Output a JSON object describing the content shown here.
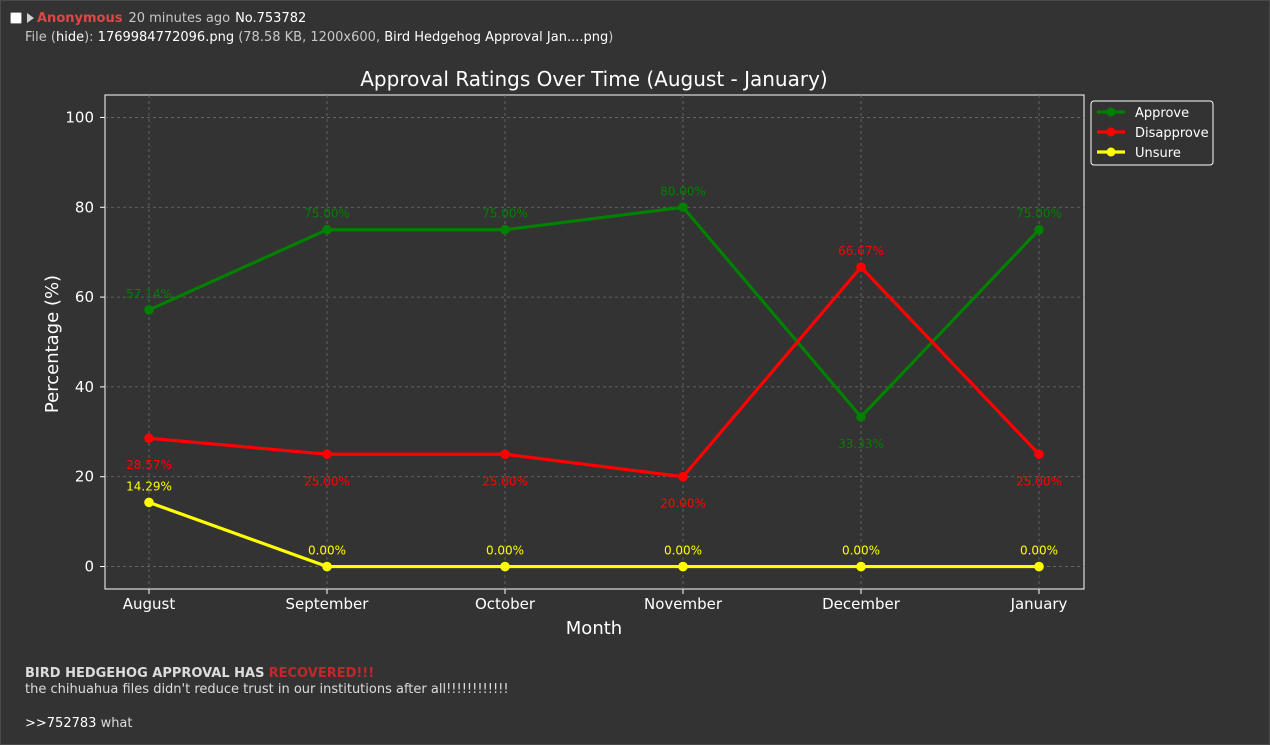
{
  "post": {
    "name": "Anonymous",
    "time": "20 minutes ago",
    "number": "No.753782",
    "file_prefix": "File (",
    "hide_label": "hide",
    "file_mid": "):",
    "file_name": "1769984772096.png",
    "file_info_open": "(78.58 KB, 1200x600,",
    "original_name": "Bird Hedgehog Approval Jan....png",
    "file_info_close": ")"
  },
  "message": {
    "headline": "BIRD HEDGEHOG APPROVAL HAS",
    "headline_red": "RECOVERED!!!",
    "line2": "the chihuahua files didn't reduce trust in our institutions after all!!!!!!!!!!!!",
    "quote": ">>752783",
    "quote_suffix": "what"
  },
  "colors": {
    "background": "#333333",
    "approve": "#008000",
    "disapprove": "#ff0000",
    "unsure": "#ffff00"
  },
  "chart_data": {
    "type": "line",
    "title": "Approval Ratings Over Time (August - January)",
    "xlabel": "Month",
    "ylabel": "Percentage (%)",
    "categories": [
      "August",
      "September",
      "October",
      "November",
      "December",
      "January"
    ],
    "ylim": [
      -5,
      105
    ],
    "yticks": [
      0,
      20,
      40,
      60,
      80,
      100
    ],
    "grid": true,
    "legend_position": "outside top-right",
    "series": [
      {
        "name": "Approve",
        "color": "#008000",
        "values": [
          57.14,
          75.0,
          75.0,
          80.0,
          33.33,
          75.0
        ],
        "labels": [
          "57.14%",
          "75.00%",
          "75.00%",
          "80.00%",
          "33.33%",
          "75.00%"
        ]
      },
      {
        "name": "Disapprove",
        "color": "#ff0000",
        "values": [
          28.57,
          25.0,
          25.0,
          20.0,
          66.67,
          25.0
        ],
        "labels": [
          "28.57%",
          "25.00%",
          "25.00%",
          "20.00%",
          "66.67%",
          "25.00%"
        ]
      },
      {
        "name": "Unsure",
        "color": "#ffff00",
        "values": [
          14.29,
          0.0,
          0.0,
          0.0,
          0.0,
          0.0
        ],
        "labels": [
          "14.29%",
          "0.00%",
          "0.00%",
          "0.00%",
          "0.00%",
          "0.00%"
        ]
      }
    ]
  }
}
